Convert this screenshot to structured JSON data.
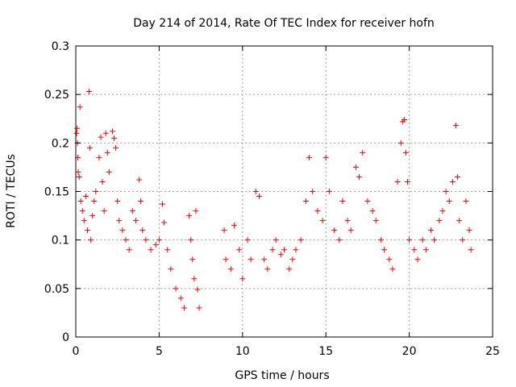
{
  "chart_data": {
    "type": "scatter",
    "title": "Day 214 of 2014, Rate Of TEC Index for receiver hofn",
    "xlabel": "GPS time / hours",
    "ylabel": "ROTI / TECUs",
    "xlim": [
      0,
      25
    ],
    "ylim": [
      0,
      0.3
    ],
    "xticks": [
      0,
      5,
      10,
      15,
      20,
      25
    ],
    "yticks": [
      0,
      0.05,
      0.1,
      0.15,
      0.2,
      0.25,
      0.3
    ],
    "xtick_labels": [
      "0",
      "5",
      "10",
      "15",
      "20",
      "25"
    ],
    "ytick_labels": [
      "0",
      "0.05",
      "0.1",
      "0.15",
      "0.2",
      "0.25",
      "0.3"
    ],
    "grid": true,
    "marker": "plus",
    "color": "#ff0000",
    "series": [
      {
        "points": [
          [
            0.05,
            0.21
          ],
          [
            0.08,
            0.215
          ],
          [
            0.1,
            0.2
          ],
          [
            0.12,
            0.185
          ],
          [
            0.15,
            0.17
          ],
          [
            0.2,
            0.165
          ],
          [
            0.25,
            0.237
          ],
          [
            0.3,
            0.14
          ],
          [
            0.4,
            0.13
          ],
          [
            0.5,
            0.12
          ],
          [
            0.6,
            0.145
          ],
          [
            0.7,
            0.11
          ],
          [
            0.8,
            0.253
          ],
          [
            0.85,
            0.195
          ],
          [
            0.9,
            0.1
          ],
          [
            1.0,
            0.125
          ],
          [
            1.1,
            0.14
          ],
          [
            1.2,
            0.15
          ],
          [
            1.4,
            0.185
          ],
          [
            1.5,
            0.206
          ],
          [
            1.6,
            0.16
          ],
          [
            1.7,
            0.13
          ],
          [
            1.8,
            0.21
          ],
          [
            1.9,
            0.19
          ],
          [
            2.0,
            0.17
          ],
          [
            2.2,
            0.212
          ],
          [
            2.3,
            0.205
          ],
          [
            2.4,
            0.195
          ],
          [
            2.5,
            0.14
          ],
          [
            2.6,
            0.12
          ],
          [
            2.8,
            0.11
          ],
          [
            3.0,
            0.1
          ],
          [
            3.2,
            0.09
          ],
          [
            3.4,
            0.13
          ],
          [
            3.6,
            0.12
          ],
          [
            3.8,
            0.162
          ],
          [
            3.9,
            0.14
          ],
          [
            4.0,
            0.11
          ],
          [
            4.2,
            0.1
          ],
          [
            4.5,
            0.09
          ],
          [
            4.8,
            0.095
          ],
          [
            5.0,
            0.1
          ],
          [
            5.2,
            0.137
          ],
          [
            5.3,
            0.118
          ],
          [
            5.5,
            0.09
          ],
          [
            5.7,
            0.07
          ],
          [
            6.0,
            0.05
          ],
          [
            6.3,
            0.04
          ],
          [
            6.5,
            0.03
          ],
          [
            6.8,
            0.125
          ],
          [
            6.9,
            0.1
          ],
          [
            7.0,
            0.08
          ],
          [
            7.1,
            0.06
          ],
          [
            7.2,
            0.13
          ],
          [
            7.3,
            0.049
          ],
          [
            7.4,
            0.03
          ],
          [
            8.9,
            0.11
          ],
          [
            9.0,
            0.08
          ],
          [
            9.3,
            0.07
          ],
          [
            9.5,
            0.115
          ],
          [
            9.8,
            0.09
          ],
          [
            10.0,
            0.06
          ],
          [
            10.3,
            0.1
          ],
          [
            10.5,
            0.08
          ],
          [
            10.8,
            0.15
          ],
          [
            11.0,
            0.145
          ],
          [
            11.3,
            0.08
          ],
          [
            11.5,
            0.07
          ],
          [
            11.8,
            0.09
          ],
          [
            12.0,
            0.1
          ],
          [
            12.3,
            0.085
          ],
          [
            12.5,
            0.09
          ],
          [
            12.8,
            0.07
          ],
          [
            13.0,
            0.08
          ],
          [
            13.2,
            0.09
          ],
          [
            13.5,
            0.1
          ],
          [
            13.8,
            0.14
          ],
          [
            14.0,
            0.185
          ],
          [
            14.2,
            0.15
          ],
          [
            14.5,
            0.13
          ],
          [
            14.8,
            0.12
          ],
          [
            15.0,
            0.185
          ],
          [
            15.2,
            0.15
          ],
          [
            15.5,
            0.11
          ],
          [
            15.8,
            0.1
          ],
          [
            16.0,
            0.14
          ],
          [
            16.3,
            0.12
          ],
          [
            16.5,
            0.11
          ],
          [
            16.8,
            0.175
          ],
          [
            17.0,
            0.165
          ],
          [
            17.2,
            0.19
          ],
          [
            17.5,
            0.14
          ],
          [
            17.8,
            0.13
          ],
          [
            18.0,
            0.12
          ],
          [
            18.3,
            0.1
          ],
          [
            18.5,
            0.09
          ],
          [
            18.8,
            0.08
          ],
          [
            19.0,
            0.07
          ],
          [
            19.3,
            0.16
          ],
          [
            19.5,
            0.2
          ],
          [
            19.6,
            0.222
          ],
          [
            19.7,
            0.224
          ],
          [
            19.8,
            0.19
          ],
          [
            19.9,
            0.16
          ],
          [
            20.0,
            0.1
          ],
          [
            20.3,
            0.09
          ],
          [
            20.5,
            0.08
          ],
          [
            20.8,
            0.1
          ],
          [
            21.0,
            0.09
          ],
          [
            21.3,
            0.11
          ],
          [
            21.5,
            0.1
          ],
          [
            21.8,
            0.12
          ],
          [
            22.0,
            0.13
          ],
          [
            22.2,
            0.15
          ],
          [
            22.4,
            0.14
          ],
          [
            22.6,
            0.16
          ],
          [
            22.8,
            0.218
          ],
          [
            22.9,
            0.165
          ],
          [
            23.0,
            0.12
          ],
          [
            23.2,
            0.1
          ],
          [
            23.4,
            0.14
          ],
          [
            23.6,
            0.11
          ],
          [
            23.7,
            0.09
          ]
        ]
      }
    ]
  }
}
